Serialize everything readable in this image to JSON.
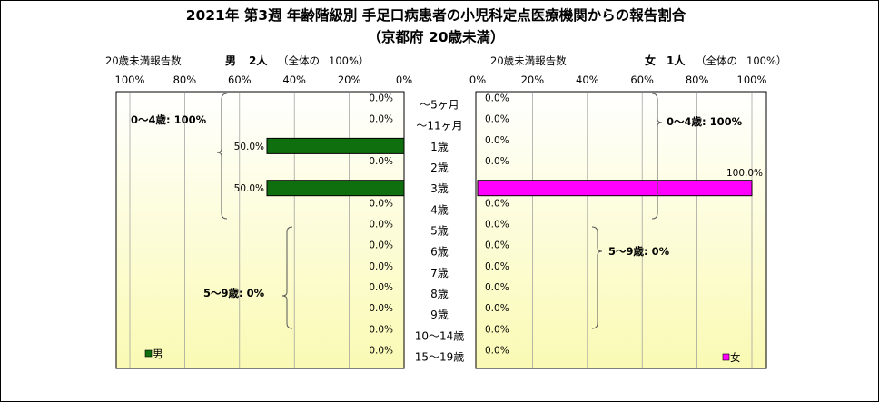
{
  "title_line1": "2021年 第3週 年齢階級別 手足口病患者の小児科定点医療機関からの報告割合",
  "title_line2": "（京都府 20歳未満）",
  "colors": {
    "male_bar": "#0f6f0f",
    "female_bar": "#ff00ff",
    "plot_bg_top": "#ffffff",
    "plot_bg_bottom": "#fafab4",
    "grid": "#999999"
  },
  "left_header": {
    "count_label": "20歳未満報告数",
    "sex": "男",
    "count": "2人",
    "whole_label": "（全体の",
    "whole_pct": "100%）"
  },
  "right_header": {
    "count_label": "20歳未満報告数",
    "sex": "女",
    "count": "1人",
    "whole_label": "（全体の",
    "whole_pct": "100%）"
  },
  "chart_data": {
    "type": "bar",
    "orientation": "horizontal-back-to-back",
    "categories": [
      "～5ヶ月",
      "～11ヶ月",
      "1歳",
      "2歳",
      "3歳",
      "4歳",
      "5歳",
      "6歳",
      "7歳",
      "8歳",
      "9歳",
      "10～14歳",
      "15～19歳"
    ],
    "x_ticks_left": [
      "100%",
      "80%",
      "60%",
      "40%",
      "20%",
      "0%"
    ],
    "x_ticks_right": [
      "0%",
      "20%",
      "40%",
      "60%",
      "80%",
      "100%"
    ],
    "xlim": [
      0,
      100
    ],
    "grid": true,
    "series": [
      {
        "name": "男",
        "side": "left",
        "values": [
          0,
          0,
          50,
          0,
          50,
          0,
          0,
          0,
          0,
          0,
          0,
          0,
          0
        ],
        "labels": [
          "0.0%",
          "0.0%",
          "50.0%",
          "0.0%",
          "50.0%",
          "0.0%",
          "0.0%",
          "0.0%",
          "0.0%",
          "0.0%",
          "0.0%",
          "0.0%",
          "0.0%"
        ]
      },
      {
        "name": "女",
        "side": "right",
        "values": [
          0,
          0,
          0,
          0,
          100,
          0,
          0,
          0,
          0,
          0,
          0,
          0,
          0
        ],
        "labels": [
          "0.0%",
          "0.0%",
          "0.0%",
          "0.0%",
          "100.0%",
          "0.0%",
          "0.0%",
          "0.0%",
          "0.0%",
          "0.0%",
          "0.0%",
          "0.0%",
          "0.0%"
        ]
      }
    ],
    "annotations": {
      "left_0_4": "0～4歳: 100%",
      "left_5_9": "5～9歳: 0%",
      "right_0_4": "0～4歳: 100%",
      "right_5_9": "5～9歳: 0%"
    },
    "legend": {
      "left": "男",
      "right": "女",
      "placement": "bottom"
    }
  }
}
